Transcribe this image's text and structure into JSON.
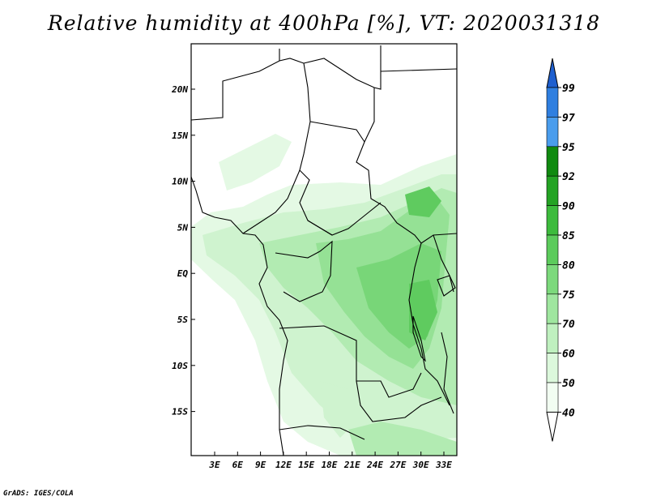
{
  "title": "Relative humidity at 400hPa [%], VT: 2020031318",
  "credit": "GrADS: IGES/COLA",
  "map": {
    "lat_labels": [
      "20N",
      "15N",
      "10N",
      "5N",
      "EQ",
      "5S",
      "10S",
      "15S"
    ],
    "lon_labels": [
      "3E",
      "6E",
      "9E",
      "12E",
      "15E",
      "18E",
      "21E",
      "24E",
      "27E",
      "30E",
      "33E"
    ]
  },
  "colorbar": {
    "levels": [
      "99",
      "97",
      "95",
      "92",
      "90",
      "85",
      "80",
      "75",
      "70",
      "60",
      "50",
      "40"
    ],
    "colors": [
      "#1e5fcf",
      "#2f7fe0",
      "#4a9ded",
      "#108a10",
      "#24a324",
      "#3dbb3d",
      "#5ccb5c",
      "#7cd97c",
      "#9fe69f",
      "#bff0bf",
      "#dcf8dc",
      "#f2fdf2"
    ]
  }
}
